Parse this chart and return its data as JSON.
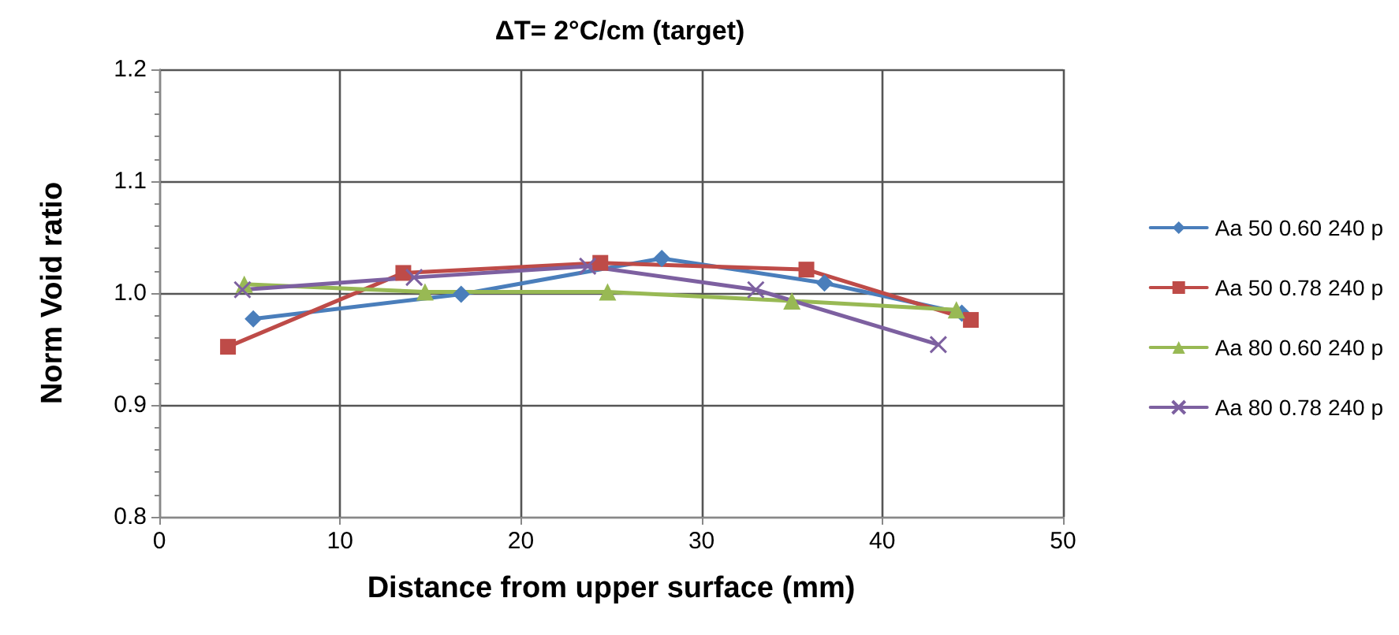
{
  "chart_data": {
    "type": "line",
    "title": "ΔT= 2°C/cm (target)",
    "xlabel": "Distance from upper surface (mm)",
    "ylabel": "Norm Void ratio",
    "xlim": [
      0,
      50
    ],
    "xticks": [
      0,
      10,
      20,
      30,
      40,
      50
    ],
    "ylim": [
      0.8,
      1.2
    ],
    "yticks": [
      {
        "value": 0.8,
        "label": "0.8"
      },
      {
        "value": 0.9,
        "label": "0.9"
      },
      {
        "value": 1,
        "label": "1.0"
      },
      {
        "value": 1.1,
        "label": "1.1"
      },
      {
        "value": 1.2,
        "label": "1.2"
      }
    ],
    "grid": true,
    "legend": "right",
    "line_style": "solid",
    "series": [
      {
        "name": "Aa 50 0.60 240 p",
        "color": "#4a7ebb",
        "marker": "diamond",
        "x": [
          5.2,
          16.7,
          27.8,
          36.8,
          44.4
        ],
        "values": [
          0.977,
          0.999,
          1.031,
          1.009,
          0.982
        ]
      },
      {
        "name": "Aa 50 0.78 240 p",
        "color": "#be4b48",
        "marker": "square",
        "x": [
          3.8,
          13.5,
          24.4,
          35.8,
          44.9
        ],
        "values": [
          0.952,
          1.018,
          1.027,
          1.021,
          0.976
        ]
      },
      {
        "name": "Aa 80 0.60 240 p",
        "color": "#98b954",
        "marker": "triangle",
        "x": [
          4.7,
          14.7,
          24.8,
          35.0,
          44.1
        ],
        "values": [
          1.008,
          1.001,
          1.001,
          0.993,
          0.985
        ]
      },
      {
        "name": "Aa 80 0.78 240 p",
        "color": "#7d60a0",
        "marker": "cross",
        "x": [
          4.6,
          14.1,
          23.7,
          33.0,
          43.1
        ],
        "values": [
          1.003,
          1.014,
          1.024,
          1.003,
          0.954
        ]
      }
    ]
  }
}
